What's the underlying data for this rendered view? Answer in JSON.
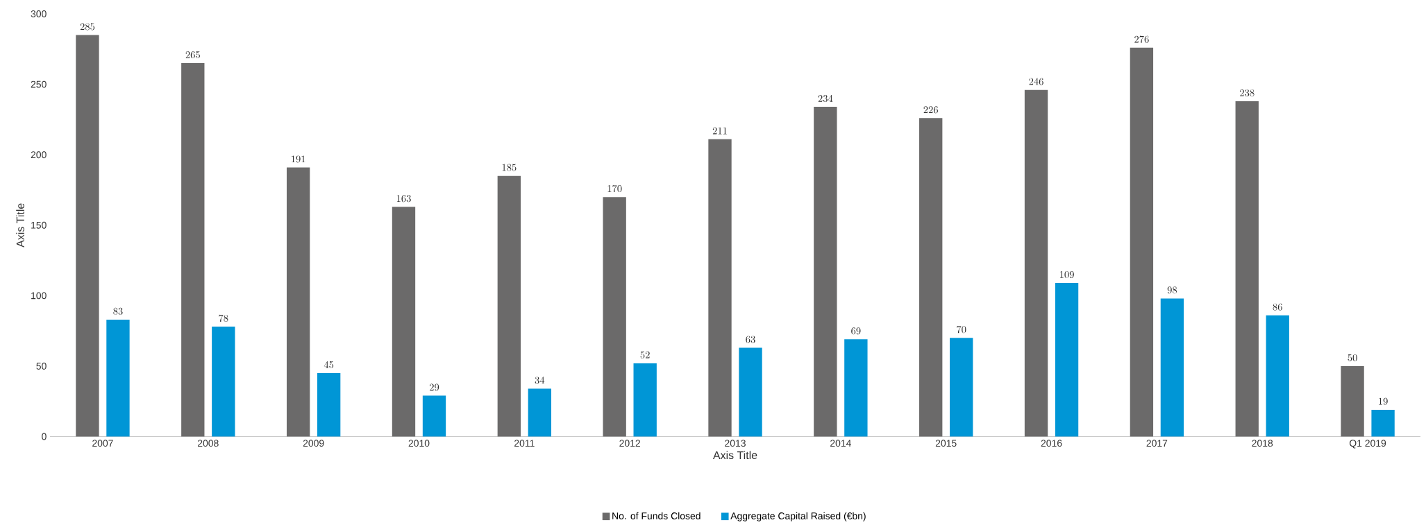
{
  "chart_data": {
    "type": "bar",
    "xlabel": "Axis Title",
    "ylabel": "Axis Title",
    "categories": [
      "2007",
      "2008",
      "2009",
      "2010",
      "2011",
      "2012",
      "2013",
      "2014",
      "2015",
      "2016",
      "2017",
      "2018",
      "Q1 2019"
    ],
    "series": [
      {
        "name": "No. of Funds Closed",
        "color": "#6b6a6a",
        "values": [
          285,
          265,
          191,
          163,
          185,
          170,
          211,
          234,
          226,
          246,
          276,
          238,
          50
        ]
      },
      {
        "name": "Aggregate Capital Raised (€bn)",
        "color": "#0096d6",
        "values": [
          83,
          78,
          45,
          29,
          34,
          52,
          63,
          69,
          70,
          109,
          98,
          86,
          19
        ]
      }
    ],
    "ylim": [
      0,
      300
    ],
    "yticks": [
      0,
      50,
      100,
      150,
      200,
      250,
      300
    ],
    "data_labels": true,
    "legend": "bottom",
    "grid": false
  }
}
